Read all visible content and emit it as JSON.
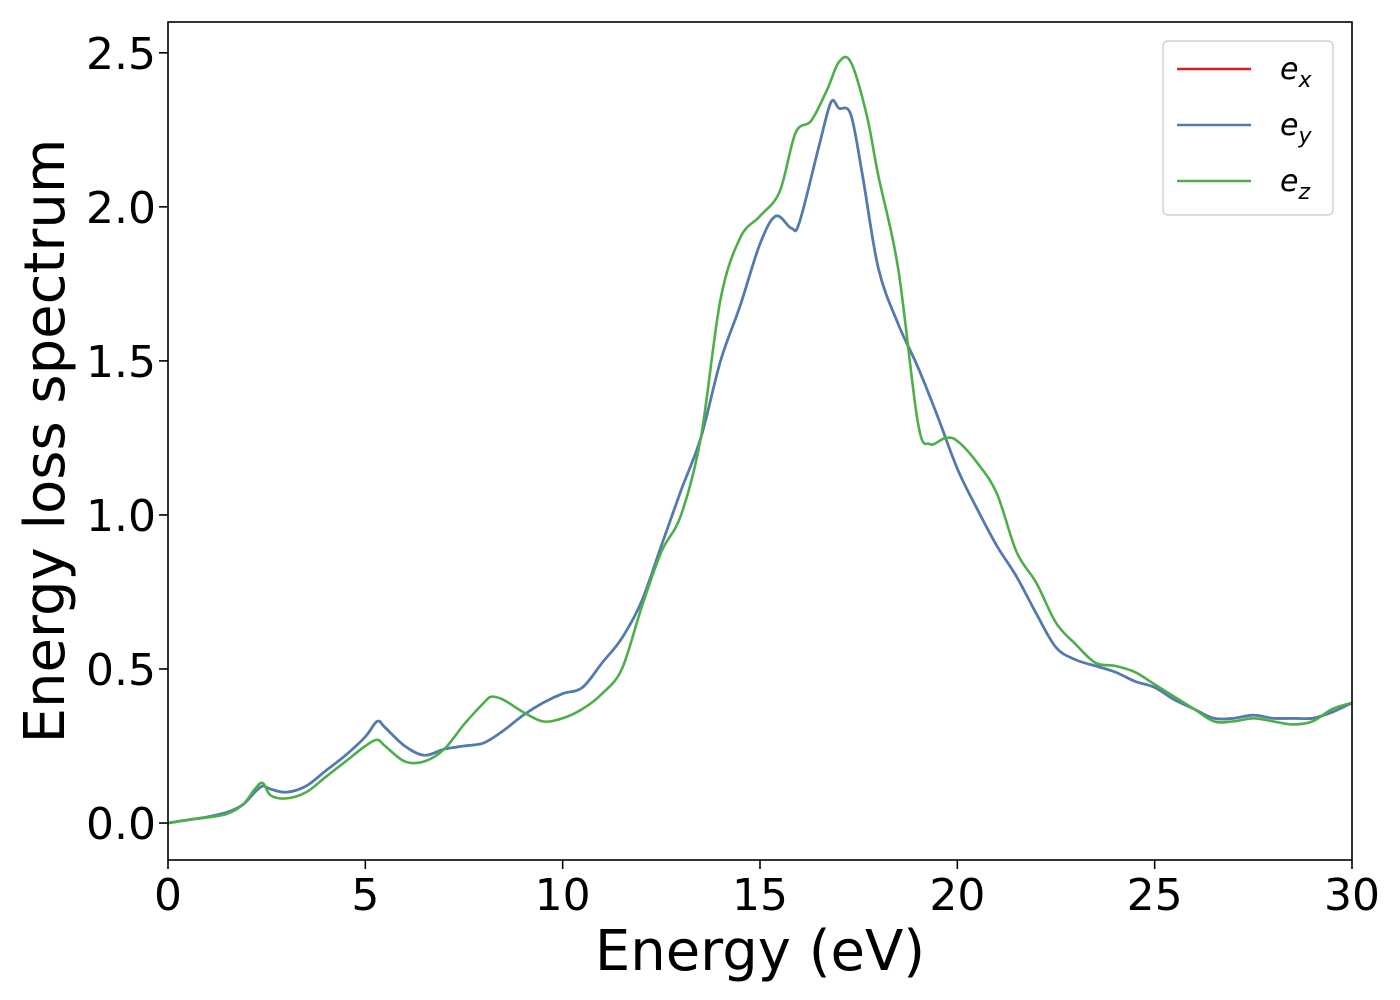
{
  "chart_data": {
    "type": "line",
    "title": "",
    "xlabel": "Energy (eV)",
    "ylabel": "Energy loss spectrum",
    "xlim": [
      0,
      30
    ],
    "ylim": [
      -0.12,
      2.6
    ],
    "xticks": [
      0,
      5,
      10,
      15,
      20,
      25,
      30
    ],
    "xtick_labels": [
      "0",
      "5",
      "10",
      "15",
      "20",
      "25",
      "30"
    ],
    "yticks": [
      0.0,
      0.5,
      1.0,
      1.5,
      2.0,
      2.5
    ],
    "ytick_labels": [
      "0.0",
      "0.5",
      "1.0",
      "1.5",
      "2.0",
      "2.5"
    ],
    "grid": false,
    "legend_position": "top-right",
    "series": [
      {
        "name": "e_x",
        "label_base": "e",
        "label_sub": "x",
        "color": "#e41a1c",
        "x": [
          0,
          0.5,
          1,
          1.5,
          1.9,
          2.2,
          2.4,
          2.6,
          3,
          3.5,
          4,
          4.5,
          5,
          5.3,
          5.5,
          6,
          6.5,
          7,
          7.5,
          8,
          8.5,
          9,
          9.5,
          10,
          10.5,
          11,
          11.5,
          12,
          12.5,
          13,
          13.5,
          14,
          14.5,
          15,
          15.4,
          15.8,
          16,
          16.5,
          16.8,
          17,
          17.3,
          17.6,
          18,
          18.5,
          19,
          19.5,
          20,
          20.5,
          21,
          21.5,
          22,
          22.5,
          23,
          23.5,
          24,
          24.5,
          25,
          25.5,
          26,
          26.5,
          27,
          27.5,
          28,
          28.5,
          29,
          29.5,
          30
        ],
        "y": [
          0,
          0.01,
          0.02,
          0.035,
          0.06,
          0.1,
          0.12,
          0.11,
          0.1,
          0.12,
          0.17,
          0.22,
          0.28,
          0.33,
          0.31,
          0.25,
          0.22,
          0.24,
          0.25,
          0.26,
          0.3,
          0.35,
          0.39,
          0.42,
          0.44,
          0.52,
          0.6,
          0.72,
          0.9,
          1.08,
          1.25,
          1.5,
          1.68,
          1.88,
          1.97,
          1.93,
          1.95,
          2.2,
          2.34,
          2.32,
          2.3,
          2.1,
          1.8,
          1.62,
          1.48,
          1.32,
          1.15,
          1.02,
          0.9,
          0.8,
          0.68,
          0.57,
          0.53,
          0.51,
          0.49,
          0.46,
          0.44,
          0.4,
          0.37,
          0.34,
          0.34,
          0.35,
          0.34,
          0.34,
          0.34,
          0.36,
          0.39
        ]
      },
      {
        "name": "e_y",
        "label_base": "e",
        "label_sub": "y",
        "color": "#4a7fb5",
        "x": [
          0,
          0.5,
          1,
          1.5,
          1.9,
          2.2,
          2.4,
          2.6,
          3,
          3.5,
          4,
          4.5,
          5,
          5.3,
          5.5,
          6,
          6.5,
          7,
          7.5,
          8,
          8.5,
          9,
          9.5,
          10,
          10.5,
          11,
          11.5,
          12,
          12.5,
          13,
          13.5,
          14,
          14.5,
          15,
          15.4,
          15.8,
          16,
          16.5,
          16.8,
          17,
          17.3,
          17.6,
          18,
          18.5,
          19,
          19.5,
          20,
          20.5,
          21,
          21.5,
          22,
          22.5,
          23,
          23.5,
          24,
          24.5,
          25,
          25.5,
          26,
          26.5,
          27,
          27.5,
          28,
          28.5,
          29,
          29.5,
          30
        ],
        "y": [
          0,
          0.01,
          0.02,
          0.035,
          0.06,
          0.1,
          0.12,
          0.11,
          0.1,
          0.12,
          0.17,
          0.22,
          0.28,
          0.33,
          0.31,
          0.25,
          0.22,
          0.24,
          0.25,
          0.26,
          0.3,
          0.35,
          0.39,
          0.42,
          0.44,
          0.52,
          0.6,
          0.72,
          0.9,
          1.08,
          1.25,
          1.5,
          1.68,
          1.88,
          1.97,
          1.93,
          1.95,
          2.2,
          2.34,
          2.32,
          2.3,
          2.1,
          1.8,
          1.62,
          1.48,
          1.32,
          1.15,
          1.02,
          0.9,
          0.8,
          0.68,
          0.57,
          0.53,
          0.51,
          0.49,
          0.46,
          0.44,
          0.4,
          0.37,
          0.34,
          0.34,
          0.35,
          0.34,
          0.34,
          0.34,
          0.36,
          0.39
        ]
      },
      {
        "name": "e_z",
        "label_base": "e",
        "label_sub": "z",
        "color": "#4daf4a",
        "x": [
          0,
          0.5,
          1,
          1.5,
          1.9,
          2.2,
          2.4,
          2.6,
          3,
          3.5,
          4,
          4.5,
          5,
          5.3,
          5.5,
          6,
          6.5,
          7,
          7.5,
          8,
          8.2,
          8.5,
          9,
          9.5,
          10,
          10.5,
          11,
          11.5,
          12,
          12.5,
          13,
          13.5,
          14,
          14.5,
          15,
          15.5,
          15.9,
          16.3,
          16.7,
          17,
          17.3,
          17.7,
          18,
          18.5,
          19,
          19.3,
          19.7,
          20,
          20.5,
          21,
          21.5,
          22,
          22.5,
          23,
          23.5,
          24,
          24.5,
          25,
          25.5,
          26,
          26.5,
          27,
          27.5,
          28,
          28.5,
          29,
          29.5,
          30
        ],
        "y": [
          0,
          0.01,
          0.018,
          0.03,
          0.06,
          0.11,
          0.13,
          0.09,
          0.08,
          0.1,
          0.15,
          0.2,
          0.25,
          0.27,
          0.25,
          0.2,
          0.2,
          0.24,
          0.32,
          0.39,
          0.41,
          0.4,
          0.36,
          0.33,
          0.34,
          0.37,
          0.42,
          0.5,
          0.7,
          0.88,
          1.0,
          1.25,
          1.7,
          1.9,
          1.97,
          2.05,
          2.24,
          2.28,
          2.38,
          2.47,
          2.47,
          2.3,
          2.1,
          1.8,
          1.3,
          1.23,
          1.25,
          1.24,
          1.17,
          1.07,
          0.88,
          0.78,
          0.65,
          0.58,
          0.52,
          0.51,
          0.49,
          0.45,
          0.41,
          0.37,
          0.33,
          0.33,
          0.34,
          0.33,
          0.32,
          0.33,
          0.37,
          0.39
        ]
      }
    ]
  }
}
